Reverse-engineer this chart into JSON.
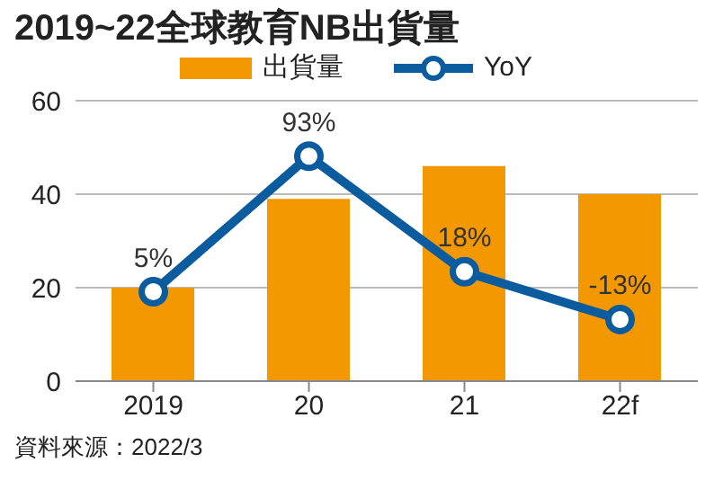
{
  "chart_data": {
    "type": "bar",
    "title": "2019~22全球教育NB出貨量",
    "categories": [
      "2019",
      "20",
      "21",
      "22f"
    ],
    "series": [
      {
        "name": "出貨量",
        "color": "#f39800",
        "values": [
          20,
          39,
          46,
          40
        ]
      },
      {
        "name": "YoY",
        "type": "line",
        "axis": "y2",
        "color": "#0b5c9e",
        "values": [
          5,
          93,
          18,
          -13
        ],
        "value_labels": [
          "5%",
          "93%",
          "18%",
          "-13%"
        ]
      }
    ],
    "ylim": [
      0,
      60
    ],
    "yticks": [
      0,
      20,
      40,
      60
    ],
    "y2lim": [
      -53,
      129
    ],
    "tick_labels": "xy",
    "grid": "y",
    "legend": "top",
    "marker": "circle",
    "annotations": [
      "資料來源：2022/3"
    ]
  }
}
